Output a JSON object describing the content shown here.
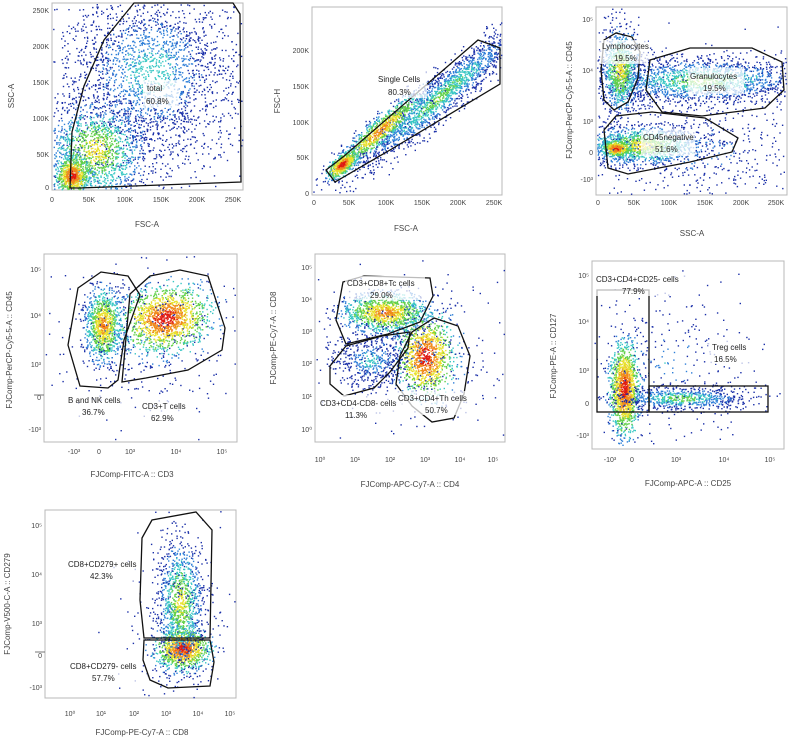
{
  "chart_data": [
    {
      "type": "scatter",
      "id": "p1",
      "xlabel": "FSC-A",
      "ylabel": "SSC-A",
      "x_ticks": [
        "0",
        "50K",
        "100K",
        "150K",
        "200K",
        "250K"
      ],
      "y_ticks": [
        "0",
        "50K",
        "100K",
        "150K",
        "200K",
        "250K"
      ],
      "xlim": [
        0,
        262144
      ],
      "ylim": [
        0,
        262144
      ],
      "gates": [
        {
          "name": "total",
          "label": "total",
          "percent": "60.8%"
        }
      ]
    },
    {
      "type": "scatter",
      "id": "p2",
      "xlabel": "FSC-A",
      "ylabel": "FSC-H",
      "x_ticks": [
        "0",
        "50K",
        "100K",
        "150K",
        "200K",
        "250K"
      ],
      "y_ticks": [
        "0",
        "50K",
        "100K",
        "150K",
        "200K"
      ],
      "xlim": [
        0,
        262144
      ],
      "ylim": [
        0,
        230000
      ],
      "gates": [
        {
          "name": "single-cells",
          "label": "Single Cells",
          "percent": "80.3%"
        }
      ]
    },
    {
      "type": "scatter",
      "id": "p3",
      "xlabel": "SSC-A",
      "ylabel": "FJComp-PerCP-Cy5-5-A :: CD45",
      "x_ticks": [
        "0",
        "50K",
        "100K",
        "150K",
        "200K",
        "250K"
      ],
      "y_ticks": [
        "-10³",
        "0",
        "10³",
        "10⁴",
        "10⁵"
      ],
      "xlim": [
        0,
        262144
      ],
      "gates": [
        {
          "name": "lymphocytes",
          "label": "Lymphocytes",
          "percent": "19.5%"
        },
        {
          "name": "granulocytes",
          "label": "Granulocytes",
          "percent": "19.5%"
        },
        {
          "name": "cd45negative",
          "label": "CD45negative",
          "percent": "51.6%"
        }
      ]
    },
    {
      "type": "scatter",
      "id": "p4",
      "xlabel": "FJComp-FITC-A :: CD3",
      "ylabel": "FJComp-PerCP-Cy5-5-A :: CD45",
      "x_ticks": [
        "-10³",
        "0",
        "10³",
        "10⁴",
        "10⁵"
      ],
      "y_ticks": [
        "-10³",
        "0",
        "10³",
        "10⁴",
        "10⁵"
      ],
      "gates": [
        {
          "name": "b-and-nk-cells",
          "label": "B and NK cells",
          "percent": "36.7%"
        },
        {
          "name": "cd3-t-cells",
          "label": "CD3+T cells",
          "percent": "62.9%"
        }
      ]
    },
    {
      "type": "scatter",
      "id": "p5",
      "xlabel": "FJComp-APC-Cy7-A :: CD4",
      "ylabel": "FJComp-PE-Cy7-A :: CD8",
      "x_ticks": [
        "10⁰",
        "10¹",
        "10²",
        "10³",
        "10⁴",
        "10⁵"
      ],
      "y_ticks": [
        "10⁰",
        "10¹",
        "10²",
        "10³",
        "10⁴",
        "10⁵"
      ],
      "gates": [
        {
          "name": "cd3-cd8-tc-cells",
          "label": "CD3+CD8+Tc cells",
          "percent": "29.0%"
        },
        {
          "name": "cd3-cd4-cd8-cells",
          "label": "CD3+CD4-CD8- cells",
          "percent": "11.3%"
        },
        {
          "name": "cd3-cd4-th-cells",
          "label": "CD3+CD4+Th cells",
          "percent": "50.7%"
        }
      ]
    },
    {
      "type": "scatter",
      "id": "p6",
      "xlabel": "FJComp-APC-A :: CD25",
      "ylabel": "FJComp-PE-A :: CD127",
      "x_ticks": [
        "-10³",
        "0",
        "10³",
        "10⁴",
        "10⁵"
      ],
      "y_ticks": [
        "-10³",
        "0",
        "10³",
        "10⁴",
        "10⁵"
      ],
      "gates": [
        {
          "name": "cd3-cd4-cd25-cells",
          "label": "CD3+CD4+CD25- cells",
          "percent": "77.9%"
        },
        {
          "name": "treg-cells",
          "label": "Treg cells",
          "percent": "16.5%"
        }
      ]
    },
    {
      "type": "scatter",
      "id": "p7",
      "xlabel": "FJComp-PE-Cy7-A :: CD8",
      "ylabel": "FJComp-V500-C-A :: CD279",
      "x_ticks": [
        "10⁰",
        "10¹",
        "10²",
        "10³",
        "10⁴",
        "10⁵"
      ],
      "y_ticks": [
        "-10³",
        "0",
        "10³",
        "10⁴",
        "10⁵"
      ],
      "gates": [
        {
          "name": "cd8-cd279-pos-cells",
          "label": "CD8+CD279+ cells",
          "percent": "42.3%"
        },
        {
          "name": "cd8-cd279-neg-cells",
          "label": "CD8+CD279- cells",
          "percent": "57.7%"
        }
      ]
    }
  ],
  "density_colors": [
    "#1a2fa8",
    "#2f7fd8",
    "#39c7c4",
    "#62d04a",
    "#e8e02c",
    "#f08a1c",
    "#e01a12"
  ]
}
